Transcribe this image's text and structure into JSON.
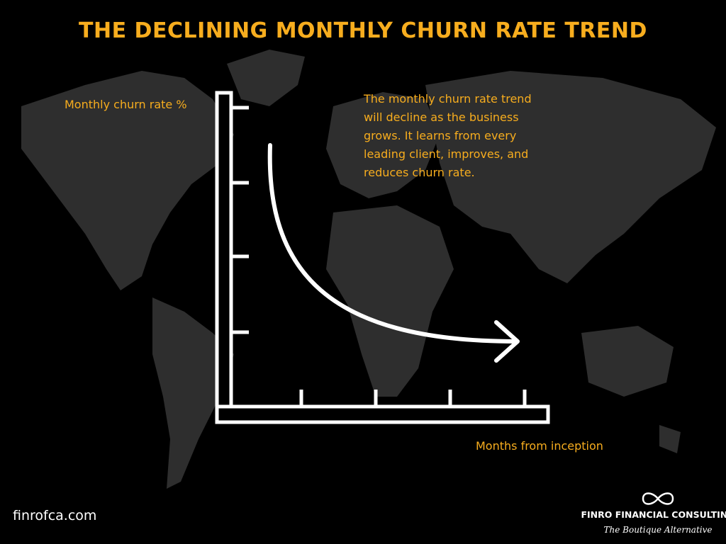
{
  "header": {
    "title": "THE DECLINING MONTHLY CHURN RATE TREND"
  },
  "diagram": {
    "y_axis_label": "Monthly churn rate %",
    "x_axis_label": "Months from inception",
    "annotation": [
      "The monthly churn rate trend",
      "will decline as the business",
      "grows. It learns from every",
      "leading client, improves, and",
      "reduces churn rate."
    ]
  },
  "footer": {
    "url": "finrofca.com",
    "brand": "FINRO FINANCIAL CONSULTING",
    "tagline": "The Boutique Alternative"
  }
}
